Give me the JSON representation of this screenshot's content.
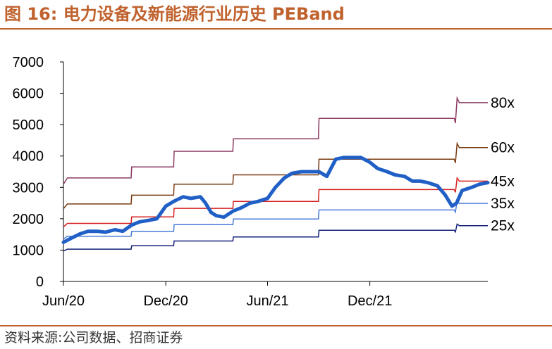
{
  "figure": {
    "title": "图 16:  电力设备及新能源行业历史 PEBand",
    "source": "资料来源:公司数据、招商证券"
  },
  "chart_data": {
    "type": "line",
    "title": "",
    "xlabel": "",
    "ylabel": "",
    "ylim": [
      0,
      7000
    ],
    "yticks": [
      0,
      1000,
      2000,
      3000,
      4000,
      5000,
      6000,
      7000
    ],
    "x_range": [
      "2020-06-01",
      "2022-06-30"
    ],
    "xticks": [
      {
        "label": "Jun/20",
        "date": "2020-06-01"
      },
      {
        "label": "Dec/20",
        "date": "2020-12-01"
      },
      {
        "label": "Jun/21",
        "date": "2021-06-01"
      },
      {
        "label": "Dec/21",
        "date": "2021-12-01"
      }
    ],
    "grid": false,
    "legend": "none",
    "band_series": [
      {
        "name": "80x",
        "color": "#8b3a62",
        "width": 1.5,
        "points": [
          [
            "2020-06-01",
            3100
          ],
          [
            "2020-06-08",
            3300
          ],
          [
            "2020-09-30",
            3300
          ],
          [
            "2020-10-01",
            3650
          ],
          [
            "2020-12-15",
            3650
          ],
          [
            "2020-12-16",
            4150
          ],
          [
            "2021-03-31",
            4150
          ],
          [
            "2021-04-01",
            4550
          ],
          [
            "2021-08-31",
            4550
          ],
          [
            "2021-09-01",
            5200
          ],
          [
            "2022-04-25",
            5200
          ],
          [
            "2022-05-01",
            5200
          ],
          [
            "2022-05-03",
            5050
          ],
          [
            "2022-05-06",
            5850
          ],
          [
            "2022-05-10",
            5700
          ],
          [
            "2022-06-30",
            5700
          ]
        ]
      },
      {
        "name": "60x",
        "color": "#7a3b10",
        "width": 1.5,
        "points": [
          [
            "2020-06-01",
            2320
          ],
          [
            "2020-06-08",
            2470
          ],
          [
            "2020-09-30",
            2470
          ],
          [
            "2020-10-01",
            2750
          ],
          [
            "2020-12-15",
            2750
          ],
          [
            "2020-12-16",
            3100
          ],
          [
            "2021-03-31",
            3100
          ],
          [
            "2021-04-01",
            3400
          ],
          [
            "2021-08-31",
            3400
          ],
          [
            "2021-09-01",
            3900
          ],
          [
            "2022-04-25",
            3900
          ],
          [
            "2022-05-01",
            3900
          ],
          [
            "2022-05-03",
            3780
          ],
          [
            "2022-05-06",
            4400
          ],
          [
            "2022-05-10",
            4270
          ],
          [
            "2022-06-30",
            4270
          ]
        ]
      },
      {
        "name": "45x",
        "color": "#d62020",
        "width": 1.5,
        "points": [
          [
            "2020-06-01",
            1740
          ],
          [
            "2020-06-08",
            1850
          ],
          [
            "2020-09-30",
            1850
          ],
          [
            "2020-10-01",
            2060
          ],
          [
            "2020-12-15",
            2060
          ],
          [
            "2020-12-16",
            2330
          ],
          [
            "2021-03-31",
            2330
          ],
          [
            "2021-04-01",
            2550
          ],
          [
            "2021-08-31",
            2550
          ],
          [
            "2021-09-01",
            2930
          ],
          [
            "2022-04-25",
            2930
          ],
          [
            "2022-05-01",
            2930
          ],
          [
            "2022-05-03",
            2840
          ],
          [
            "2022-05-06",
            3300
          ],
          [
            "2022-05-10",
            3200
          ],
          [
            "2022-06-30",
            3200
          ]
        ]
      },
      {
        "name": "35x",
        "color": "#4a7bd8",
        "width": 1.5,
        "points": [
          [
            "2020-06-01",
            1350
          ],
          [
            "2020-06-08",
            1440
          ],
          [
            "2020-09-30",
            1440
          ],
          [
            "2020-10-01",
            1600
          ],
          [
            "2020-12-15",
            1600
          ],
          [
            "2020-12-16",
            1810
          ],
          [
            "2021-03-31",
            1810
          ],
          [
            "2021-04-01",
            1990
          ],
          [
            "2021-08-31",
            1990
          ],
          [
            "2021-09-01",
            2280
          ],
          [
            "2022-04-25",
            2280
          ],
          [
            "2022-05-01",
            2280
          ],
          [
            "2022-05-03",
            2210
          ],
          [
            "2022-05-06",
            2570
          ],
          [
            "2022-05-10",
            2490
          ],
          [
            "2022-06-30",
            2490
          ]
        ]
      },
      {
        "name": "25x",
        "color": "#12207a",
        "width": 1.5,
        "points": [
          [
            "2020-06-01",
            970
          ],
          [
            "2020-06-08",
            1030
          ],
          [
            "2020-09-30",
            1030
          ],
          [
            "2020-10-01",
            1140
          ],
          [
            "2020-12-15",
            1140
          ],
          [
            "2020-12-16",
            1290
          ],
          [
            "2021-03-31",
            1290
          ],
          [
            "2021-04-01",
            1420
          ],
          [
            "2021-08-31",
            1420
          ],
          [
            "2021-09-01",
            1630
          ],
          [
            "2022-04-25",
            1630
          ],
          [
            "2022-05-01",
            1630
          ],
          [
            "2022-05-03",
            1580
          ],
          [
            "2022-05-06",
            1830
          ],
          [
            "2022-05-10",
            1780
          ],
          [
            "2022-06-30",
            1780
          ]
        ]
      }
    ],
    "index_series": {
      "color": "#1f5fc6",
      "width": 5,
      "points": [
        [
          "2020-06-01",
          1250
        ],
        [
          "2020-06-15",
          1380
        ],
        [
          "2020-07-01",
          1520
        ],
        [
          "2020-07-15",
          1600
        ],
        [
          "2020-08-01",
          1600
        ],
        [
          "2020-08-15",
          1570
        ],
        [
          "2020-09-01",
          1650
        ],
        [
          "2020-09-15",
          1600
        ],
        [
          "2020-10-01",
          1800
        ],
        [
          "2020-10-15",
          1900
        ],
        [
          "2020-11-01",
          1950
        ],
        [
          "2020-11-15",
          2000
        ],
        [
          "2020-12-01",
          2400
        ],
        [
          "2020-12-15",
          2550
        ],
        [
          "2021-01-01",
          2700
        ],
        [
          "2021-01-15",
          2650
        ],
        [
          "2021-02-01",
          2700
        ],
        [
          "2021-02-10",
          2500
        ],
        [
          "2021-02-20",
          2200
        ],
        [
          "2021-03-01",
          2100
        ],
        [
          "2021-03-15",
          2050
        ],
        [
          "2021-04-01",
          2250
        ],
        [
          "2021-04-15",
          2350
        ],
        [
          "2021-05-01",
          2500
        ],
        [
          "2021-05-15",
          2550
        ],
        [
          "2021-06-01",
          2650
        ],
        [
          "2021-06-15",
          3000
        ],
        [
          "2021-07-01",
          3300
        ],
        [
          "2021-07-15",
          3450
        ],
        [
          "2021-08-01",
          3500
        ],
        [
          "2021-08-15",
          3500
        ],
        [
          "2021-09-01",
          3500
        ],
        [
          "2021-09-15",
          3350
        ],
        [
          "2021-10-01",
          3900
        ],
        [
          "2021-10-15",
          3950
        ],
        [
          "2021-11-01",
          3950
        ],
        [
          "2021-11-15",
          3950
        ],
        [
          "2021-12-01",
          3800
        ],
        [
          "2021-12-15",
          3600
        ],
        [
          "2022-01-01",
          3500
        ],
        [
          "2022-01-15",
          3400
        ],
        [
          "2022-02-01",
          3350
        ],
        [
          "2022-02-15",
          3200
        ],
        [
          "2022-03-01",
          3200
        ],
        [
          "2022-03-15",
          3150
        ],
        [
          "2022-04-01",
          3050
        ],
        [
          "2022-04-15",
          2750
        ],
        [
          "2022-04-27",
          2400
        ],
        [
          "2022-05-05",
          2500
        ],
        [
          "2022-05-15",
          2900
        ],
        [
          "2022-06-01",
          3000
        ],
        [
          "2022-06-15",
          3100
        ],
        [
          "2022-06-30",
          3150
        ]
      ]
    }
  }
}
